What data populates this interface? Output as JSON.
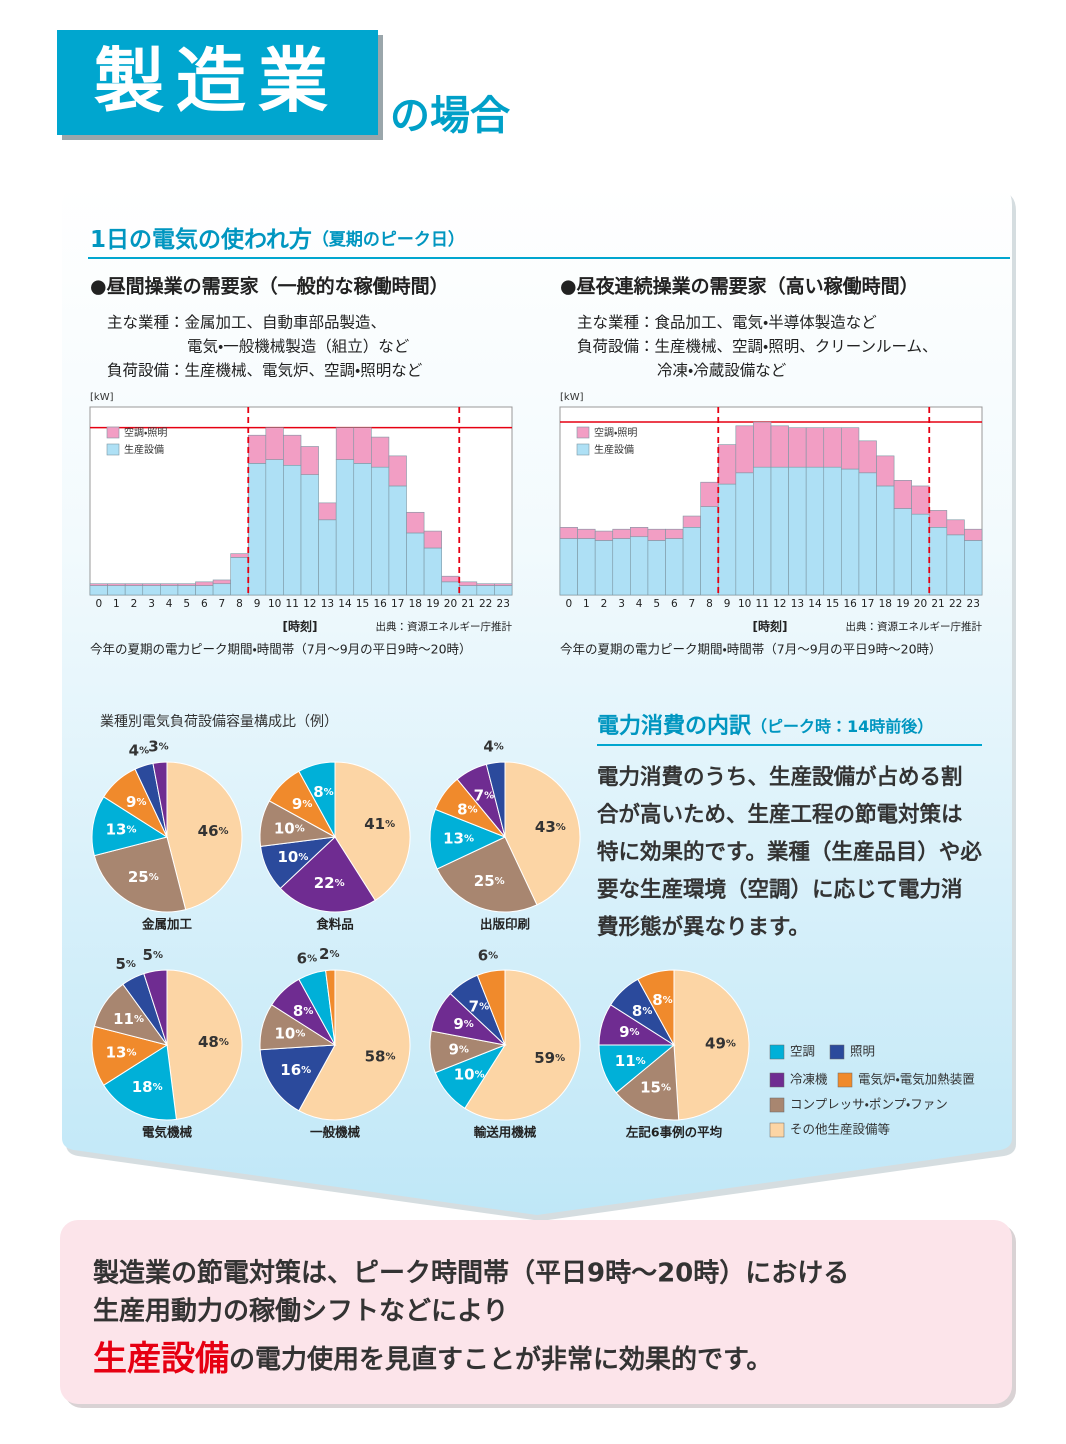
{
  "header": {
    "title": "製造業",
    "suffix": "の場合"
  },
  "usage": {
    "title": "1日の電気の使われ方",
    "subtitle": "（夏期のピーク日）"
  },
  "chart_data": [
    {
      "type": "bar",
      "stacked": true,
      "heading": "●昼間操業の需要家（一般的な稼働時間）",
      "notes": [
        "主な業種：金属加工、自動車部品製造、",
        "電気・一般機械製造（組立）など",
        "負荷設備：生産機械、電気炉、空調・照明など"
      ],
      "y_label": "[kW]",
      "x_label": "[時刻]",
      "source": "出典：資源エネルギー庁推計",
      "caption": "今年の夏期の電力ピーク期間・時間帯（7月～9月の平日9時～20時）",
      "categories": [
        "0",
        "1",
        "2",
        "3",
        "4",
        "5",
        "6",
        "7",
        "8",
        "9",
        "10",
        "11",
        "12",
        "13",
        "14",
        "15",
        "16",
        "17",
        "18",
        "19",
        "20",
        "21",
        "22",
        "23"
      ],
      "series": [
        {
          "name": "生産設備",
          "color": "#aee0f5",
          "values": [
            5,
            5,
            5,
            5,
            5,
            5,
            5,
            6,
            20,
            70,
            72,
            69,
            64,
            40,
            72,
            70,
            68,
            58,
            33,
            25,
            7,
            5,
            5,
            5
          ]
        },
        {
          "name": "空調・照明",
          "color": "#f29ec4",
          "values": [
            1,
            1,
            1,
            1,
            1,
            1,
            2,
            2,
            2,
            15,
            17,
            16,
            15,
            9,
            17,
            19,
            16,
            16,
            11,
            9,
            3,
            2,
            1,
            1
          ]
        }
      ],
      "ylim": [
        0,
        100
      ],
      "reference_line": 89,
      "reference_color": "#e60012"
    },
    {
      "type": "bar",
      "stacked": true,
      "heading": "●昼夜連続操業の需要家（高い稼働時間）",
      "notes": [
        "主な業種：食品加工、電気・半導体製造など",
        "負荷設備：生産機械、空調・照明、クリーンルーム、",
        "冷凍・冷蔵設備など"
      ],
      "y_label": "[kW]",
      "x_label": "[時刻]",
      "source": "出典：資源エネルギー庁推計",
      "caption": "今年の夏期の電力ピーク期間・時間帯（7月～9月の平日9時～20時）",
      "categories": [
        "0",
        "1",
        "2",
        "3",
        "4",
        "5",
        "6",
        "7",
        "8",
        "9",
        "10",
        "11",
        "12",
        "13",
        "14",
        "15",
        "16",
        "17",
        "18",
        "19",
        "20",
        "21",
        "22",
        "23"
      ],
      "series": [
        {
          "name": "生産設備",
          "color": "#aee0f5",
          "values": [
            30,
            30,
            29,
            30,
            31,
            29,
            30,
            36,
            47,
            59,
            65,
            68,
            68,
            68,
            68,
            68,
            67,
            65,
            58,
            46,
            43,
            36,
            32,
            29
          ]
        },
        {
          "name": "空調・照明",
          "color": "#f29ec4",
          "values": [
            6,
            5,
            5,
            5,
            5,
            6,
            5,
            6,
            13,
            21,
            25,
            24,
            22,
            21,
            21,
            21,
            22,
            17,
            16,
            15,
            15,
            9,
            8,
            6
          ]
        }
      ],
      "ylim": [
        0,
        100
      ],
      "reference_line": 92,
      "reference_color": "#e60012"
    },
    {
      "type": "pie",
      "title": "金属加工",
      "values": [
        46,
        25,
        13,
        9,
        4,
        3
      ],
      "value_labels": [
        "46%",
        "25%",
        "13%",
        "9%",
        "4%",
        "3%"
      ],
      "colors": [
        "#fcd5a5",
        "#a88670",
        "#00b0d8",
        "#f08a2c",
        "#2b4a9c",
        "#6f2c91"
      ]
    },
    {
      "type": "pie",
      "title": "食料品",
      "values": [
        41,
        22,
        10,
        10,
        9,
        8
      ],
      "value_labels": [
        "41%",
        "22%",
        "10%",
        "10%",
        "9%",
        "8%"
      ],
      "colors": [
        "#fcd5a5",
        "#6f2c91",
        "#2b4a9c",
        "#a88670",
        "#f08a2c",
        "#00b0d8"
      ]
    },
    {
      "type": "pie",
      "title": "出版印刷",
      "values": [
        43,
        25,
        13,
        8,
        7,
        4
      ],
      "value_labels": [
        "43%",
        "25%",
        "13%",
        "8%",
        "7%",
        "4%"
      ],
      "colors": [
        "#fcd5a5",
        "#a88670",
        "#00b0d8",
        "#f08a2c",
        "#6f2c91",
        "#2b4a9c"
      ]
    },
    {
      "type": "pie",
      "title": "電気機械",
      "values": [
        48,
        18,
        13,
        11,
        5,
        5
      ],
      "value_labels": [
        "48%",
        "18%",
        "13%",
        "11%",
        "5%",
        "5%"
      ],
      "colors": [
        "#fcd5a5",
        "#00b0d8",
        "#f08a2c",
        "#a88670",
        "#2b4a9c",
        "#6f2c91"
      ]
    },
    {
      "type": "pie",
      "title": "一般機械",
      "values": [
        58,
        16,
        10,
        8,
        6,
        2
      ],
      "value_labels": [
        "58%",
        "16%",
        "10%",
        "8%",
        "6%",
        "2%"
      ],
      "colors": [
        "#fcd5a5",
        "#2b4a9c",
        "#a88670",
        "#6f2c91",
        "#00b0d8",
        "#f08a2c"
      ]
    },
    {
      "type": "pie",
      "title": "輸送用機械",
      "values": [
        59,
        10,
        9,
        9,
        7,
        6
      ],
      "value_labels": [
        "59%",
        "10%",
        "9%",
        "9%",
        "7%",
        "6%"
      ],
      "colors": [
        "#fcd5a5",
        "#00b0d8",
        "#a88670",
        "#6f2c91",
        "#2b4a9c",
        "#f08a2c"
      ]
    },
    {
      "type": "pie",
      "title": "左記6事例の平均",
      "values": [
        49,
        15,
        11,
        9,
        8,
        8
      ],
      "value_labels": [
        "49%",
        "15%",
        "11%",
        "9%",
        "8%",
        "8%"
      ],
      "colors": [
        "#fcd5a5",
        "#a88670",
        "#00b0d8",
        "#6f2c91",
        "#2b4a9c",
        "#f08a2c"
      ]
    }
  ],
  "pie_section": {
    "title": "業種別電気負荷設備容量構成比（例）",
    "legend": [
      {
        "name": "空調",
        "color": "#00b0d8"
      },
      {
        "name": "照明",
        "color": "#2b4a9c"
      },
      {
        "name": "冷凍機",
        "color": "#6f2c91"
      },
      {
        "name": "電気炉・電気加熱装置",
        "color": "#f08a2c"
      },
      {
        "name": "コンプレッサ・ポンプ・ファン",
        "color": "#a88670"
      },
      {
        "name": "その他生産設備等",
        "color": "#fcd5a5"
      }
    ]
  },
  "breakdown": {
    "title": "電力消費の内訳",
    "subtitle": "（ピーク時：14時前後）",
    "lines": [
      "電力消費のうち、生産設備が占める割",
      "合が高いため、生産工程の節電対策は",
      "特に効果的です。業種（生産品目）や必",
      "要な生産環境（空調）に応じて電力消",
      "費形態が異なります。"
    ]
  },
  "conclusion": {
    "line1": "製造業の節電対策は、ピーク時間帯（平日9時～20時）における",
    "line2": "生産用動力の稼働シフトなどにより",
    "highlight": "生産設備",
    "line3": "の電力使用を見直すことが非常に効果的です。"
  }
}
